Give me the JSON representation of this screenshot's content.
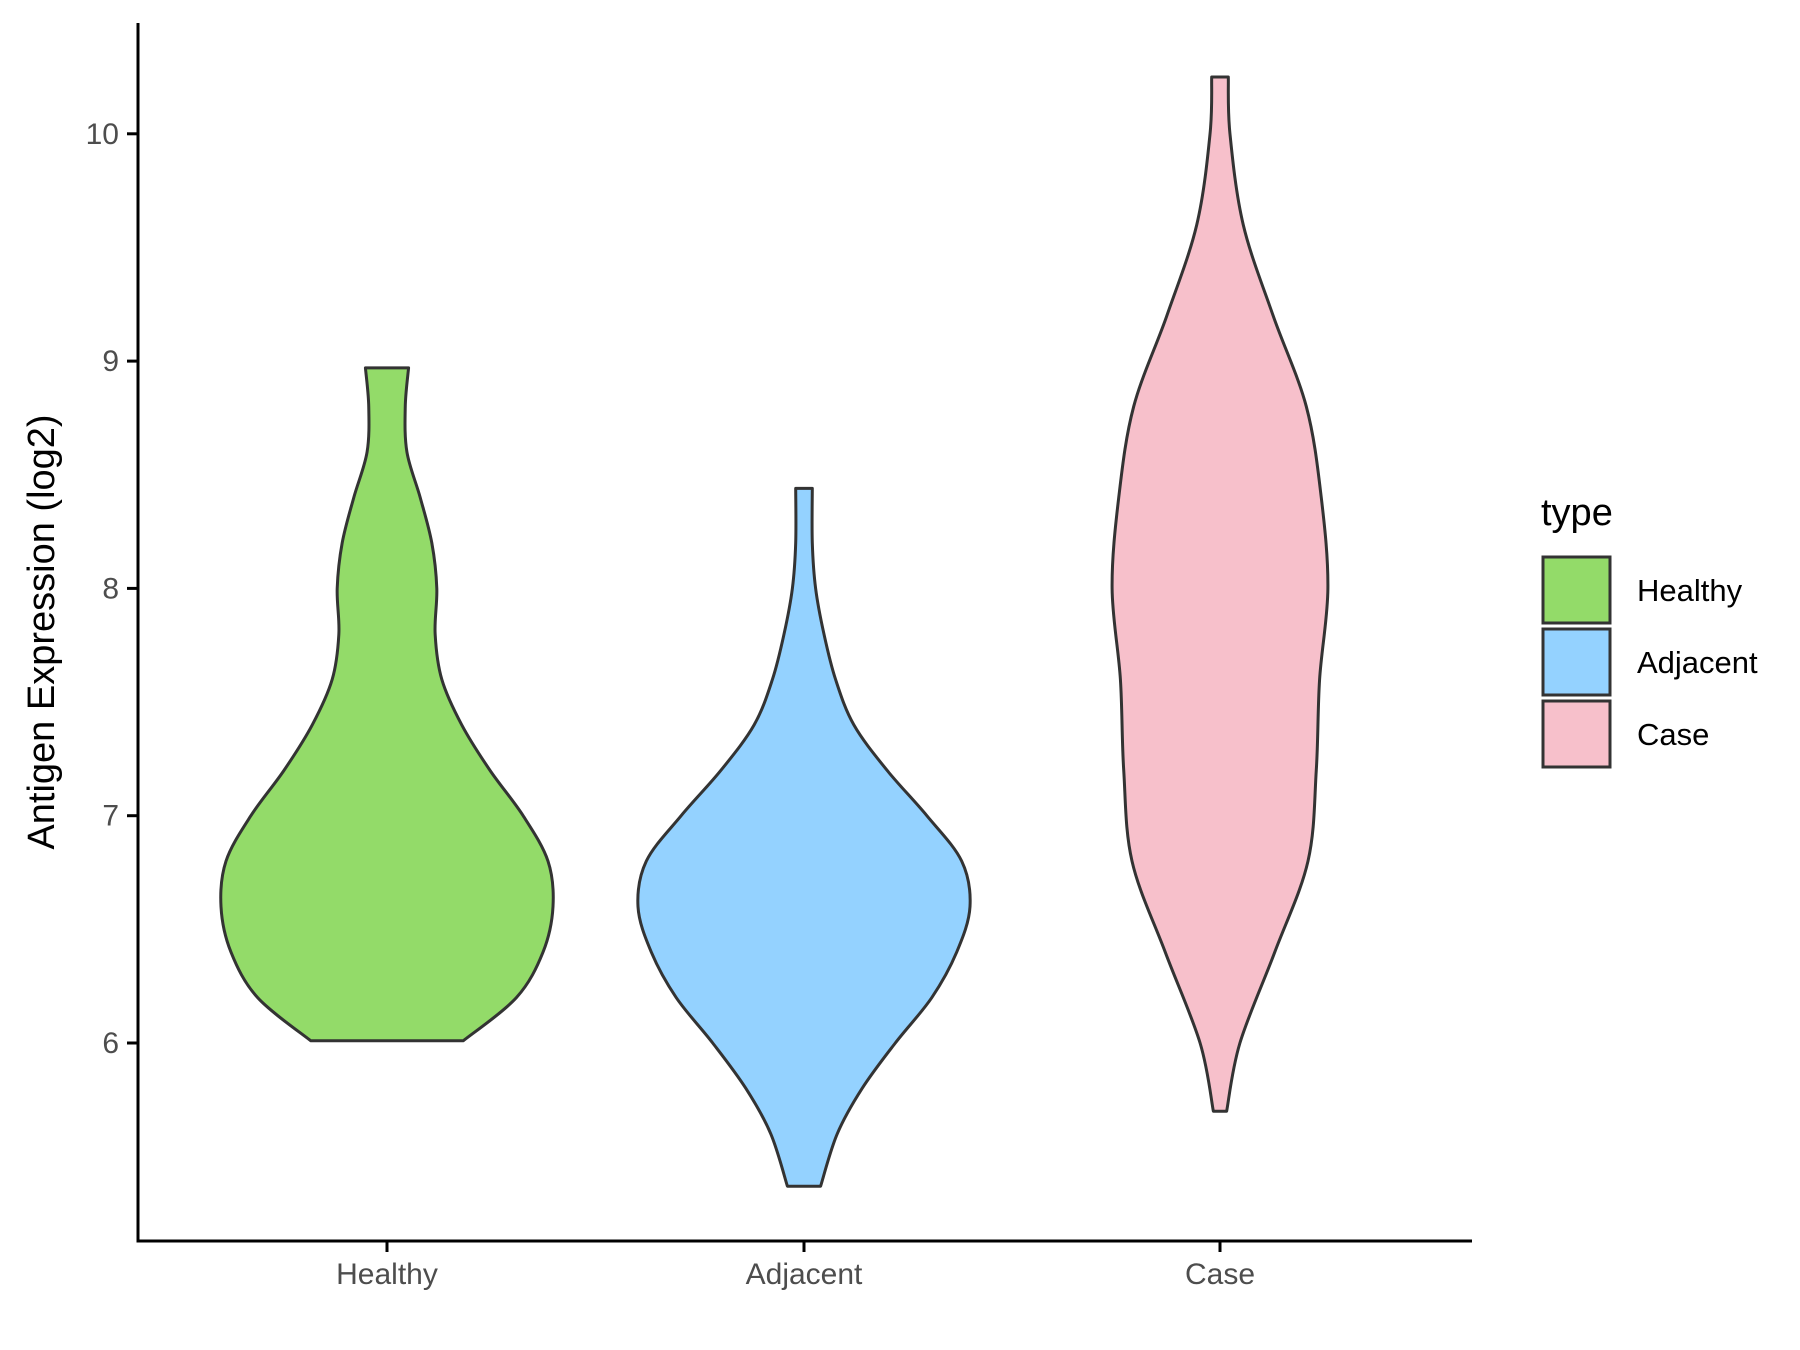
{
  "chart_data": {
    "type": "violin",
    "ylabel": "Antigen Expression (log2)",
    "xlabel": "",
    "ylim": [
      5.25,
      10.5
    ],
    "yticks": [
      6,
      7,
      8,
      9,
      10
    ],
    "grid": false,
    "legend": {
      "title": "type",
      "placement": "right"
    },
    "categories": [
      "Healthy",
      "Adjacent",
      "Case"
    ],
    "series": [
      {
        "name": "Healthy",
        "color": "#93DB69",
        "min": 6.01,
        "max": 8.97,
        "profile": [
          [
            6.01,
            0.46
          ],
          [
            6.2,
            0.78
          ],
          [
            6.4,
            0.94
          ],
          [
            6.6,
            1.0
          ],
          [
            6.8,
            0.97
          ],
          [
            7.0,
            0.82
          ],
          [
            7.2,
            0.62
          ],
          [
            7.4,
            0.45
          ],
          [
            7.6,
            0.33
          ],
          [
            7.8,
            0.29
          ],
          [
            8.0,
            0.3
          ],
          [
            8.2,
            0.27
          ],
          [
            8.4,
            0.2
          ],
          [
            8.6,
            0.12
          ],
          [
            8.8,
            0.11
          ],
          [
            8.97,
            0.13
          ]
        ]
      },
      {
        "name": "Adjacent",
        "color": "#94D2FF",
        "min": 5.37,
        "max": 8.44,
        "profile": [
          [
            5.37,
            0.1
          ],
          [
            5.6,
            0.2
          ],
          [
            5.8,
            0.35
          ],
          [
            6.0,
            0.55
          ],
          [
            6.2,
            0.77
          ],
          [
            6.4,
            0.92
          ],
          [
            6.6,
            1.0
          ],
          [
            6.8,
            0.95
          ],
          [
            7.0,
            0.74
          ],
          [
            7.2,
            0.5
          ],
          [
            7.4,
            0.3
          ],
          [
            7.6,
            0.19
          ],
          [
            7.8,
            0.12
          ],
          [
            8.0,
            0.07
          ],
          [
            8.2,
            0.05
          ],
          [
            8.44,
            0.05
          ]
        ]
      },
      {
        "name": "Case",
        "color": "#F7C0CB",
        "min": 5.7,
        "max": 10.25,
        "profile": [
          [
            5.7,
            0.04
          ],
          [
            6.0,
            0.12
          ],
          [
            6.4,
            0.33
          ],
          [
            6.8,
            0.53
          ],
          [
            7.2,
            0.58
          ],
          [
            7.6,
            0.6
          ],
          [
            8.0,
            0.65
          ],
          [
            8.4,
            0.61
          ],
          [
            8.8,
            0.52
          ],
          [
            9.2,
            0.32
          ],
          [
            9.6,
            0.14
          ],
          [
            10.0,
            0.06
          ],
          [
            10.25,
            0.05
          ]
        ]
      }
    ]
  }
}
